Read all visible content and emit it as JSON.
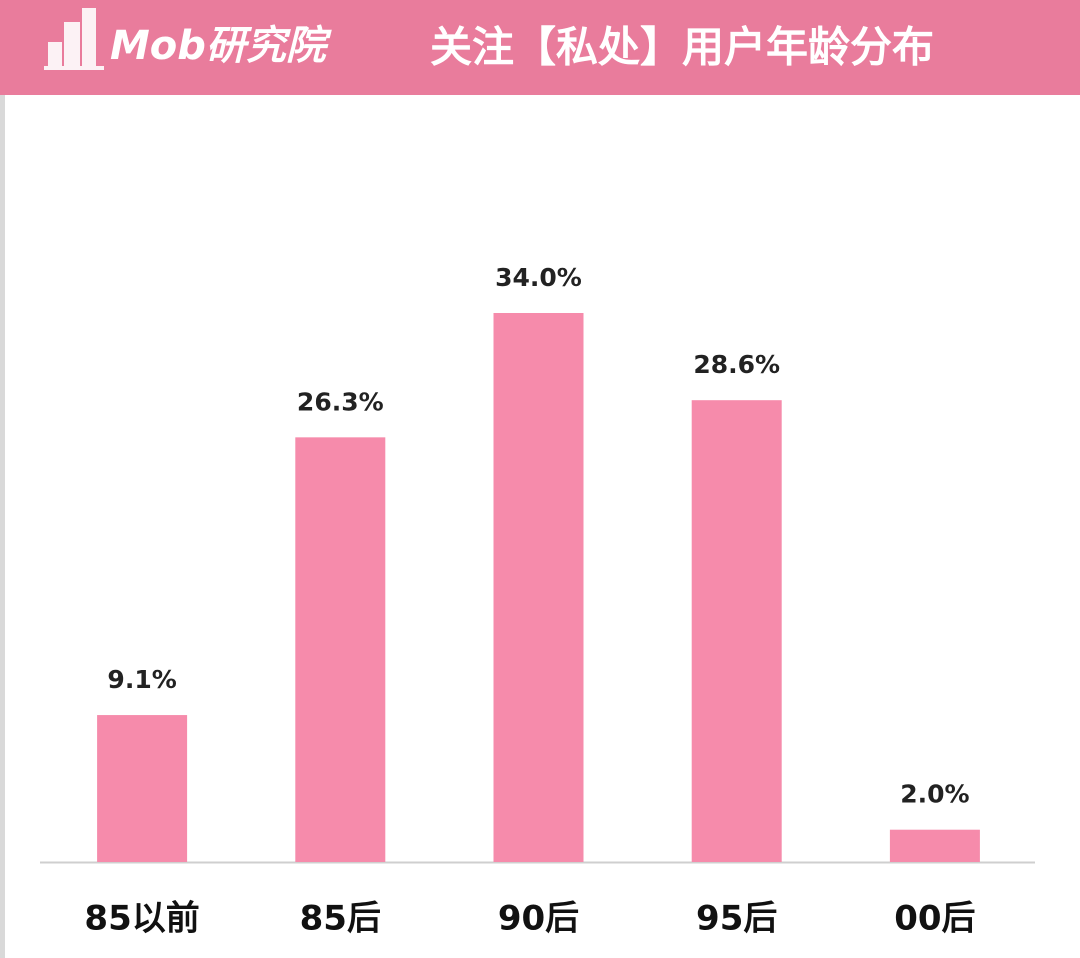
{
  "brand": "Mob研究院",
  "chart_data": {
    "type": "bar",
    "title": "关注【私处】用户年龄分布",
    "categories": [
      "85以前",
      "85后",
      "90后",
      "95后",
      "00后"
    ],
    "values": [
      9.1,
      26.3,
      34.0,
      28.6,
      2.0
    ],
    "value_labels": [
      "9.1%",
      "26.3%",
      "34.0%",
      "28.6%",
      "2.0%"
    ],
    "color": "#f68bab"
  }
}
